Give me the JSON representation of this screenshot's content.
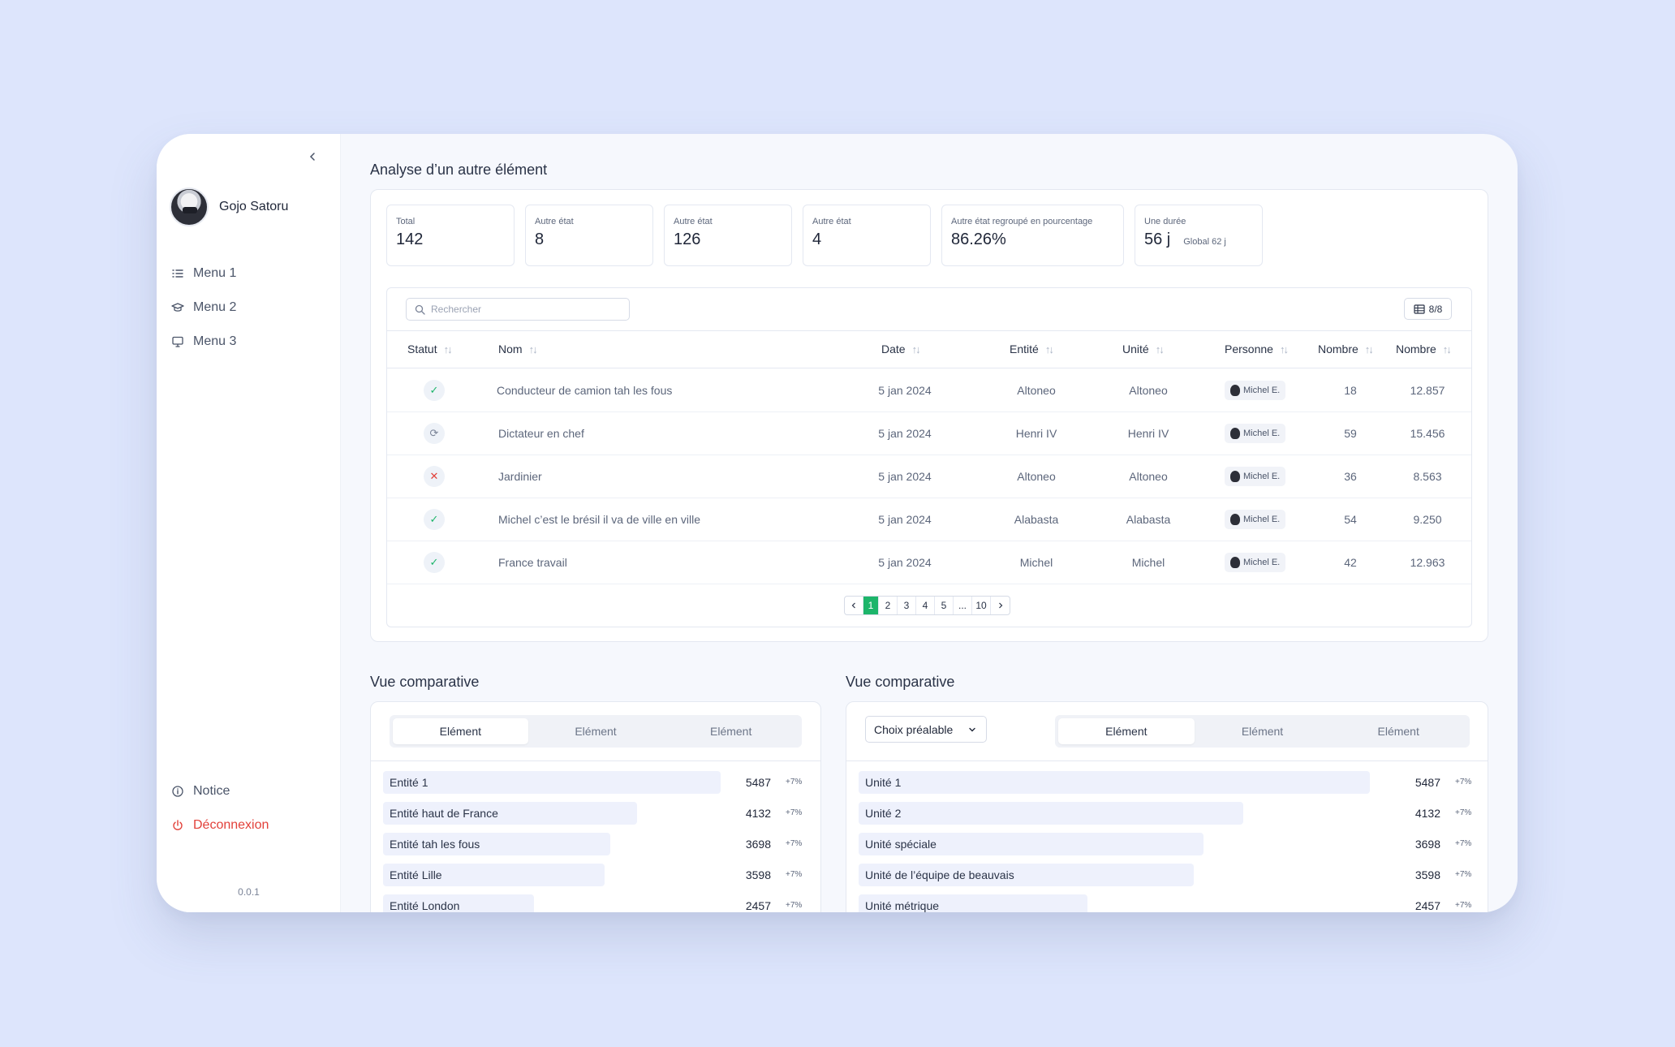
{
  "user": {
    "name": "Gojo Satoru"
  },
  "nav": {
    "items": [
      "Menu 1",
      "Menu 2",
      "Menu 3"
    ],
    "notice": "Notice",
    "logout": "Déconnexion",
    "version": "0.0.1"
  },
  "analysis": {
    "title": "Analyse d’un autre élément",
    "stats": [
      {
        "label": "Total",
        "value": "142"
      },
      {
        "label": "Autre état",
        "value": "8"
      },
      {
        "label": "Autre état",
        "value": "126"
      },
      {
        "label": "Autre état",
        "value": "4"
      },
      {
        "label": "Autre état regroupé en pourcentage",
        "value": "86.26%"
      },
      {
        "label": "Une durée",
        "value": "56 j",
        "sub": "Global 62 j"
      }
    ],
    "search_placeholder": "Rechercher",
    "columns_toggle": "8/8",
    "headers": [
      "Statut",
      "Nom",
      "Date",
      "Entité",
      "Unité",
      "Personne",
      "Nombre",
      "Nombre"
    ],
    "rows": [
      {
        "status": "done",
        "name": "Conducteur de camion tah les fous",
        "date": "5 jan 2024",
        "entity": "Altoneo",
        "unit": "Altoneo",
        "person": "Michel E.",
        "n1": "18",
        "n2": "12.857"
      },
      {
        "status": "pending",
        "name": "Dictateur en chef",
        "date": "5 jan 2024",
        "entity": "Henri IV",
        "unit": "Henri IV",
        "person": "Michel E.",
        "n1": "59",
        "n2": "15.456"
      },
      {
        "status": "failed",
        "name": "Jardinier",
        "date": "5 jan 2024",
        "entity": "Altoneo",
        "unit": "Altoneo",
        "person": "Michel E.",
        "n1": "36",
        "n2": "8.563"
      },
      {
        "status": "done",
        "name": "Michel c’est le brésil il va de ville en ville",
        "date": "5 jan 2024",
        "entity": "Alabasta",
        "unit": "Alabasta",
        "person": "Michel E.",
        "n1": "54",
        "n2": "9.250"
      },
      {
        "status": "done",
        "name": "France travail",
        "date": "5 jan 2024",
        "entity": "Michel",
        "unit": "Michel",
        "person": "Michel E.",
        "n1": "42",
        "n2": "12.963"
      }
    ],
    "pagination": [
      "1",
      "2",
      "3",
      "4",
      "5",
      "...",
      "10"
    ],
    "current_page": "1"
  },
  "compare_left": {
    "title": "Vue comparative",
    "tabs": [
      "Elément",
      "Elément",
      "Elément"
    ],
    "active_tab": 0,
    "max": 5487,
    "rows": [
      {
        "label": "Entité 1",
        "value": 5487,
        "pct": "+7%"
      },
      {
        "label": "Entité haut de France",
        "value": 4132,
        "pct": "+7%"
      },
      {
        "label": "Entité tah les fous",
        "value": 3698,
        "pct": "+7%"
      },
      {
        "label": "Entité Lille",
        "value": 3598,
        "pct": "+7%"
      },
      {
        "label": "Entité London",
        "value": 2457,
        "pct": "+7%"
      }
    ]
  },
  "compare_right": {
    "title": "Vue comparative",
    "dropdown": "Choix préalable",
    "tabs": [
      "Elément",
      "Elément",
      "Elément"
    ],
    "active_tab": 0,
    "max": 5487,
    "rows": [
      {
        "label": "Unité 1",
        "value": 5487,
        "pct": "+7%"
      },
      {
        "label": "Unité 2",
        "value": 4132,
        "pct": "+7%"
      },
      {
        "label": "Unité spéciale",
        "value": 3698,
        "pct": "+7%"
      },
      {
        "label": "Unité de l’équipe de beauvais",
        "value": 3598,
        "pct": "+7%"
      },
      {
        "label": "Unité métrique",
        "value": 2457,
        "pct": "+7%"
      }
    ]
  },
  "colors": {
    "accent": "#1db56a",
    "danger": "#e2413a",
    "background": "#dde5fc"
  }
}
